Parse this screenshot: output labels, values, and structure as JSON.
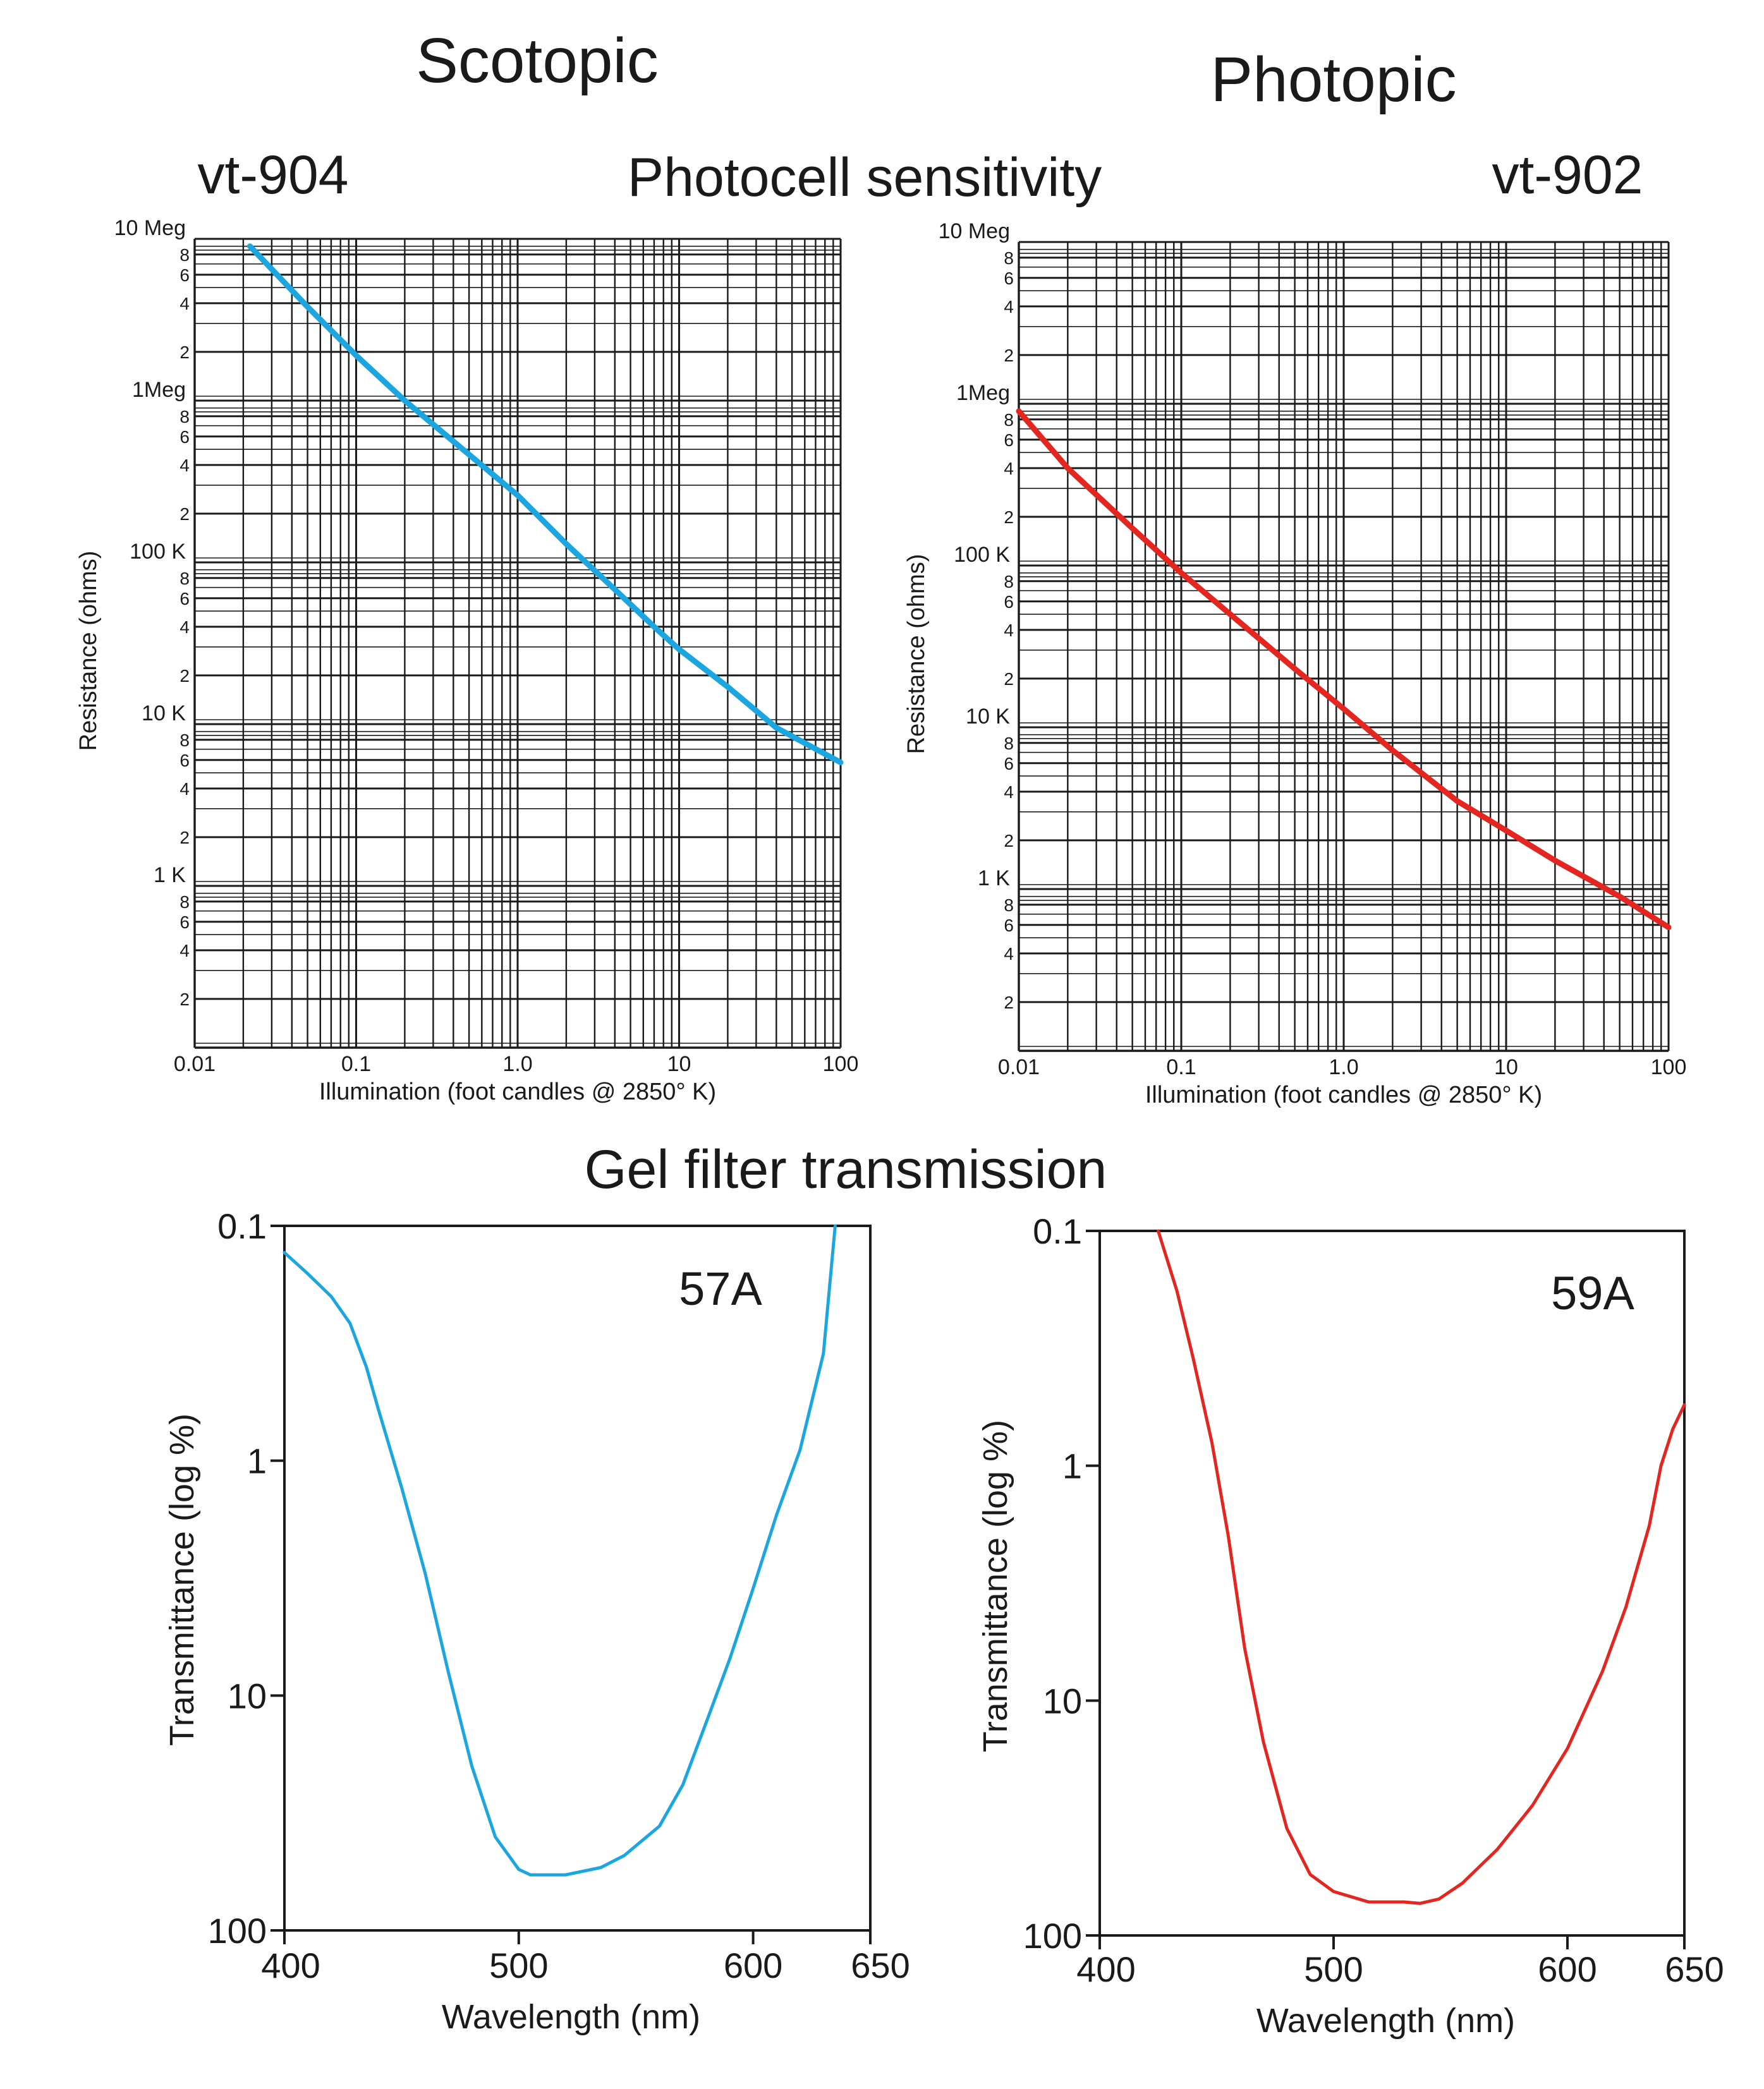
{
  "titles": {
    "scotopic": "Scotopic",
    "photopic": "Photopic",
    "photocell": "Photocell sensitivity",
    "gel": "Gel filter transmission",
    "left_device": "vt-904",
    "right_device": "vt-902"
  },
  "colors": {
    "blue": "#1ba6e0",
    "red": "#e3261f",
    "grid": "#1a1a1a"
  },
  "chart_data": [
    {
      "id": "scotopic-vt904",
      "type": "line",
      "title": "vt-904",
      "xlabel": "Illumination (foot candles @ 2850° K)",
      "ylabel": "Resistance (ohms)",
      "xscale": "log",
      "yscale": "log",
      "xlim": [
        0.01,
        100
      ],
      "ylim": [
        100,
        10000000
      ],
      "grid": true,
      "x_tick_labels": [
        "0.01",
        "0.1",
        "1.0",
        "10",
        "100"
      ],
      "x_tick_values": [
        0.01,
        0.1,
        1,
        10,
        100
      ],
      "y_major_labels": [
        "10 Meg",
        "1Meg",
        "100 K",
        "10 K",
        "1 K"
      ],
      "y_major_values": [
        10000000,
        1000000,
        100000,
        10000,
        1000
      ],
      "y_minor_labels": [
        "2",
        "4",
        "6",
        "8"
      ],
      "series": [
        {
          "name": "vt-904",
          "color": "#1ba6e0",
          "x": [
            0.022,
            0.05,
            0.1,
            0.2,
            0.4,
            1,
            2,
            4,
            7,
            10,
            20,
            40,
            100
          ],
          "y": [
            9000000,
            3800000,
            1900000,
            1000000,
            560000,
            260000,
            130000,
            68000,
            40000,
            29000,
            17000,
            9500,
            5800
          ]
        }
      ]
    },
    {
      "id": "photopic-vt902",
      "type": "line",
      "title": "vt-902",
      "xlabel": "Illumination (foot candles @ 2850° K)",
      "ylabel": "Resistance (ohms)",
      "xscale": "log",
      "yscale": "log",
      "xlim": [
        0.01,
        100
      ],
      "ylim": [
        100,
        10000000
      ],
      "grid": true,
      "x_tick_labels": [
        "0.01",
        "0.1",
        "1.0",
        "10",
        "100"
      ],
      "x_tick_values": [
        0.01,
        0.1,
        1,
        10,
        100
      ],
      "y_major_labels": [
        "10 Meg",
        "1Meg",
        "100 K",
        "10 K",
        "1 K"
      ],
      "y_major_values": [
        10000000,
        1000000,
        100000,
        10000,
        1000
      ],
      "y_minor_labels": [
        "2",
        "4",
        "6",
        "8"
      ],
      "series": [
        {
          "name": "vt-902",
          "color": "#e3261f",
          "x": [
            0.01,
            0.02,
            0.05,
            0.1,
            0.2,
            0.5,
            1,
            2,
            5,
            10,
            20,
            50,
            100
          ],
          "y": [
            900000,
            400000,
            170000,
            90000,
            50000,
            23000,
            13000,
            7200,
            3500,
            2300,
            1500,
            900,
            580
          ]
        }
      ]
    },
    {
      "id": "gel-57a",
      "type": "line",
      "title": "57A",
      "xlabel": "Wavelength (nm)",
      "ylabel": "Transmittance (log %)",
      "xlim": [
        400,
        650
      ],
      "yscale": "log-inverted",
      "ylim": [
        0.1,
        100
      ],
      "x_tick_labels": [
        "400",
        "500",
        "600",
        "650"
      ],
      "x_tick_values": [
        400,
        500,
        600,
        650
      ],
      "y_tick_labels": [
        "0.1",
        "1",
        "10",
        "100"
      ],
      "y_tick_values": [
        0.1,
        1,
        10,
        100
      ],
      "series": [
        {
          "name": "57A",
          "color": "#1ba6e0",
          "x": [
            400,
            410,
            420,
            428,
            435,
            440,
            450,
            460,
            470,
            480,
            490,
            500,
            505,
            520,
            535,
            545,
            560,
            570,
            580,
            590,
            600,
            610,
            620,
            630,
            635
          ],
          "y": [
            0.13,
            0.16,
            0.2,
            0.26,
            0.4,
            0.6,
            1.3,
            3,
            8,
            20,
            40,
            55,
            58,
            58,
            54,
            48,
            36,
            24,
            13,
            7,
            3.5,
            1.7,
            0.9,
            0.35,
            0.1
          ]
        }
      ]
    },
    {
      "id": "gel-59a",
      "type": "line",
      "title": "59A",
      "xlabel": "Wavelength (nm)",
      "ylabel": "Transmittance (log %)",
      "xlim": [
        400,
        650
      ],
      "yscale": "log-inverted",
      "ylim": [
        0.1,
        100
      ],
      "x_tick_labels": [
        "400",
        "500",
        "600",
        "650"
      ],
      "x_tick_values": [
        400,
        500,
        600,
        650
      ],
      "y_tick_labels": [
        "0.1",
        "1",
        "10",
        "100"
      ],
      "y_tick_values": [
        0.1,
        1,
        10,
        100
      ],
      "series": [
        {
          "name": "59A",
          "color": "#e3261f",
          "x": [
            425,
            433,
            440,
            448,
            455,
            462,
            470,
            480,
            490,
            500,
            515,
            530,
            537,
            545,
            555,
            570,
            585,
            600,
            615,
            625,
            635,
            640,
            645,
            650
          ],
          "y": [
            0.1,
            0.18,
            0.35,
            0.8,
            2,
            6,
            15,
            35,
            55,
            65,
            72,
            72,
            73,
            70,
            60,
            43,
            28,
            16,
            7.5,
            4,
            1.8,
            1,
            0.7,
            0.55
          ]
        }
      ]
    }
  ]
}
